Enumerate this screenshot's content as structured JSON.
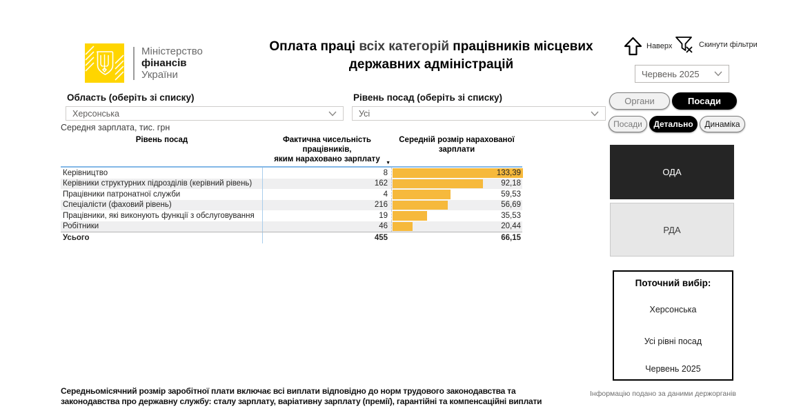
{
  "brand": {
    "line1": "Міністерство",
    "line2": "фінансів",
    "line3": "України"
  },
  "title": {
    "part1": "Оплата праці ",
    "part2": "всіх категорій",
    "part3": " працівників місцевих державних адміністрацій"
  },
  "topbar": {
    "nav_up_label": "Наверх",
    "reset_filters_label": "Скинути фільтри",
    "period_value": "Червень 2025"
  },
  "filters": {
    "region": {
      "label": "Область (оберіть зі списку)",
      "value": "Херсонська"
    },
    "level": {
      "label": "Рівень посад (оберіть зі списку)",
      "value": "Усі"
    }
  },
  "toggles": {
    "row1": [
      {
        "label": "Органи",
        "active": false
      },
      {
        "label": "Посади",
        "active": true
      }
    ],
    "row2": [
      {
        "label": "Посади",
        "active": false
      },
      {
        "label": "Детально",
        "active": true
      },
      {
        "label": "Динаміка",
        "active": false
      }
    ]
  },
  "table": {
    "caption": "Середня зарплата, тис. грн",
    "col1_header": "Рівень посад",
    "col2_header_line1": "Фактична чисельність працівників,",
    "col2_header_line2": "яким нараховано зарплату",
    "col3_header_line1": "Середній розмір нарахованої",
    "col3_header_line2": "зарплати",
    "sort_indicator": "▼",
    "rows": [
      {
        "label": "Керівництво",
        "count": "8",
        "salary": "133,39"
      },
      {
        "label": "Керівники структурних підрозділів (керівний рівень)",
        "count": "162",
        "salary": "92,18"
      },
      {
        "label": "Працівники патронатної служби",
        "count": "4",
        "salary": "59,53"
      },
      {
        "label": "Спеціалісти (фаховий рівень)",
        "count": "216",
        "salary": "56,69"
      },
      {
        "label": "Працівники, які виконують функції з обслуговування",
        "count": "19",
        "salary": "35,53"
      },
      {
        "label": "Робітники",
        "count": "46",
        "salary": "20,44"
      }
    ],
    "total": {
      "label": "Усього",
      "count": "455",
      "salary": "66,15"
    }
  },
  "chart_data": {
    "type": "bar",
    "orientation": "horizontal",
    "title": "Середня зарплата, тис. грн",
    "categories": [
      "Керівництво",
      "Керівники структурних підрозділів (керівний рівень)",
      "Працівники патронатної служби",
      "Спеціалісти (фаховий рівень)",
      "Працівники, які виконують функції з обслуговування",
      "Робітники"
    ],
    "series": [
      {
        "name": "Фактична чисельність працівників, яким нараховано зарплату",
        "values": [
          8,
          162,
          4,
          216,
          19,
          46
        ]
      },
      {
        "name": "Середній розмір нарахованої зарплати",
        "values": [
          133.39,
          92.18,
          59.53,
          56.69,
          35.53,
          20.44
        ]
      }
    ],
    "totals": {
      "count": 455,
      "salary": 66.15
    },
    "xlim": [
      0,
      133.39
    ],
    "bar_color": "#f6b93c",
    "grid": false,
    "legend": false
  },
  "side": {
    "oda_label": "ОДА",
    "rda_label": "РДА",
    "current_selection": {
      "title": "Поточний вибір:",
      "items": [
        "Херсонська",
        "Усі рівні посад",
        "Червень 2025"
      ]
    }
  },
  "footer": {
    "note": "Середньомісячний розмір заробітної плати включає всі виплати відповідно до норм трудового законодавства та законодавства про державну службу: сталу зарплату, варіативну зарплату (премії), гарантійні та компенсаційні виплати",
    "source": "Інформацію подано за даними держорганів"
  },
  "colors": {
    "bar": "#f6b93c",
    "brand_yellow": "#ffd500",
    "selected_button_bg": "#000000",
    "oda_bg": "#252525",
    "rda_bg": "#e7e7e7",
    "table_grid_blue": "#82b7e6",
    "alt_row_bg": "#efeff0"
  }
}
